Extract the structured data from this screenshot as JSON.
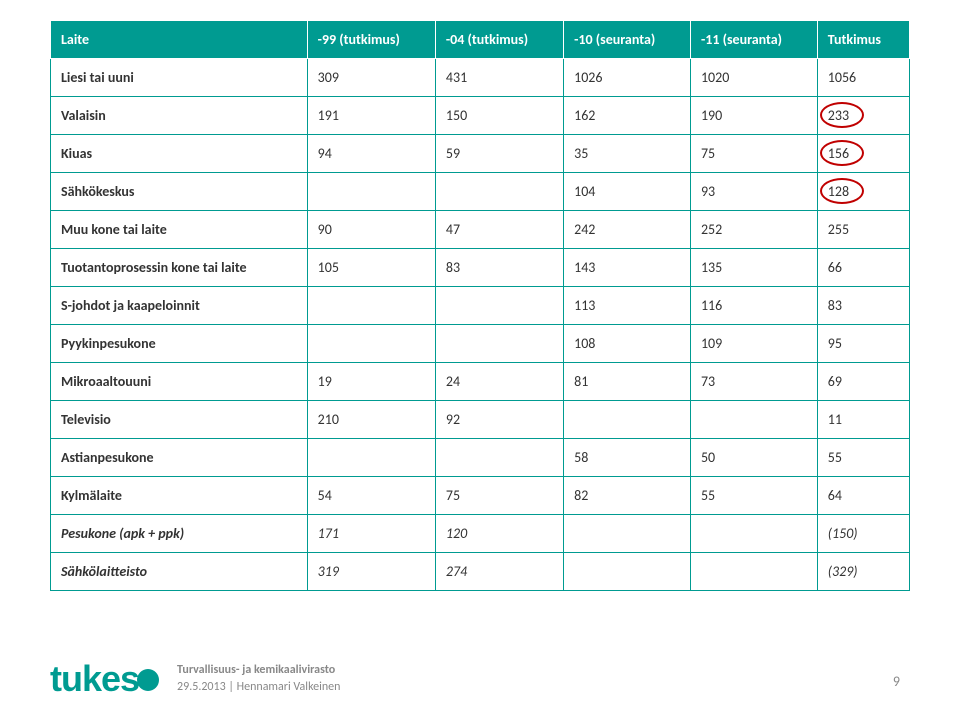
{
  "table": {
    "headers": [
      "Laite",
      "-99 (tutkimus)",
      "-04 (tutkimus)",
      "-10 (seuranta)",
      "-11 (seuranta)",
      "Tutkimus"
    ],
    "rows": [
      {
        "cells": [
          "Liesi tai uuni",
          "309",
          "431",
          "1026",
          "1020",
          "1056"
        ],
        "italic": false,
        "circles": []
      },
      {
        "cells": [
          "Valaisin",
          "191",
          "150",
          "162",
          "190",
          "233"
        ],
        "italic": false,
        "circles": [
          5
        ]
      },
      {
        "cells": [
          "Kiuas",
          "94",
          "59",
          "35",
          "75",
          "156"
        ],
        "italic": false,
        "circles": [
          5
        ]
      },
      {
        "cells": [
          "Sähkökeskus",
          "",
          "",
          "104",
          "93",
          "128"
        ],
        "italic": false,
        "circles": [
          5
        ]
      },
      {
        "cells": [
          "Muu kone tai laite",
          "90",
          "47",
          "242",
          "252",
          "255"
        ],
        "italic": false,
        "circles": []
      },
      {
        "cells": [
          "Tuotantoprosessin kone tai laite",
          "105",
          "83",
          "143",
          "135",
          "66"
        ],
        "italic": false,
        "circles": []
      },
      {
        "cells": [
          "S-johdot ja kaapeloinnit",
          "",
          "",
          "113",
          "116",
          "83"
        ],
        "italic": false,
        "circles": []
      },
      {
        "cells": [
          "Pyykinpesukone",
          "",
          "",
          "108",
          "109",
          "95"
        ],
        "italic": false,
        "circles": []
      },
      {
        "cells": [
          "Mikroaaltouuni",
          "19",
          "24",
          "81",
          "73",
          "69"
        ],
        "italic": false,
        "circles": []
      },
      {
        "cells": [
          "Televisio",
          "210",
          "92",
          "",
          "",
          "11"
        ],
        "italic": false,
        "circles": []
      },
      {
        "cells": [
          "Astianpesukone",
          "",
          "",
          "58",
          "50",
          "55"
        ],
        "italic": false,
        "circles": []
      },
      {
        "cells": [
          "Kylmälaite",
          "54",
          "75",
          "82",
          "55",
          "64"
        ],
        "italic": false,
        "circles": []
      },
      {
        "cells": [
          "Pesukone (apk + ppk)",
          "171",
          "120",
          "",
          "",
          "(150)"
        ],
        "italic": true,
        "circles": []
      },
      {
        "cells": [
          "Sähkölaitteisto",
          "319",
          "274",
          "",
          "",
          "(329)"
        ],
        "italic": true,
        "circles": []
      }
    ],
    "header_bg": "#009b91",
    "header_fg": "#ffffff",
    "border_color": "#009b91",
    "circle_color": "#c00000",
    "font_size": 14
  },
  "footer": {
    "logo_text": "tukes",
    "line1": "Turvallisuus- ja kemikaalivirasto",
    "line2": "29.5.2013 | Hennamari Valkeinen",
    "text_color": "#888888",
    "logo_color": "#009b91"
  },
  "page_number": "9"
}
